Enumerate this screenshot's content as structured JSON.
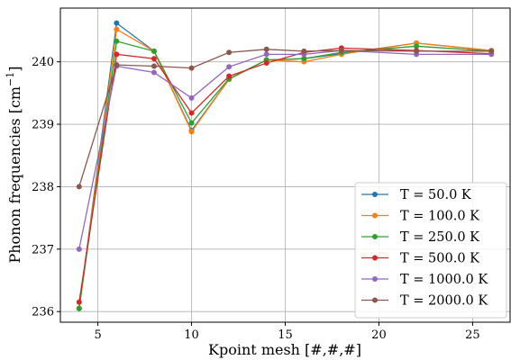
{
  "chart_data": {
    "type": "line",
    "title": "",
    "xlabel": "Kpoint mesh [#,#,#]",
    "ylabel_main": "Phonon frequencies [cm",
    "ylabel_sup": "−1",
    "ylabel_end": "]",
    "xlim": [
      3,
      27
    ],
    "ylim": [
      235.83,
      240.86
    ],
    "xticks": [
      5,
      10,
      15,
      20,
      25
    ],
    "yticks": [
      236,
      237,
      238,
      239,
      240
    ],
    "grid": true,
    "legend_position": "bottom-right",
    "x": [
      4,
      6,
      8,
      10,
      12,
      14,
      16,
      18,
      22,
      26
    ],
    "series": [
      {
        "name": "T = 50.0 K",
        "color": "#1f77b4",
        "values": [
          236.05,
          240.62,
          240.17,
          238.9,
          239.72,
          240.03,
          240.05,
          240.13,
          240.3,
          240.18
        ]
      },
      {
        "name": "T = 100.0 K",
        "color": "#ff7f0e",
        "values": [
          236.05,
          240.52,
          240.17,
          238.88,
          239.72,
          240.03,
          240.0,
          240.12,
          240.3,
          240.18
        ]
      },
      {
        "name": "T = 250.0 K",
        "color": "#2ca02c",
        "values": [
          236.05,
          240.33,
          240.17,
          239.02,
          239.73,
          240.03,
          240.05,
          240.15,
          240.25,
          240.17
        ]
      },
      {
        "name": "T = 500.0 K",
        "color": "#d62728",
        "values": [
          236.15,
          240.12,
          240.05,
          239.18,
          239.77,
          239.98,
          240.15,
          240.22,
          240.18,
          240.13
        ]
      },
      {
        "name": "T = 1000.0 K",
        "color": "#9467bd",
        "values": [
          237.0,
          239.93,
          239.83,
          239.42,
          239.92,
          240.12,
          240.12,
          240.18,
          240.12,
          240.12
        ]
      },
      {
        "name": "T = 2000.0 K",
        "color": "#8c564b",
        "values": [
          238.0,
          239.95,
          239.93,
          239.9,
          240.15,
          240.2,
          240.17,
          240.18,
          240.17,
          240.17
        ]
      }
    ]
  }
}
